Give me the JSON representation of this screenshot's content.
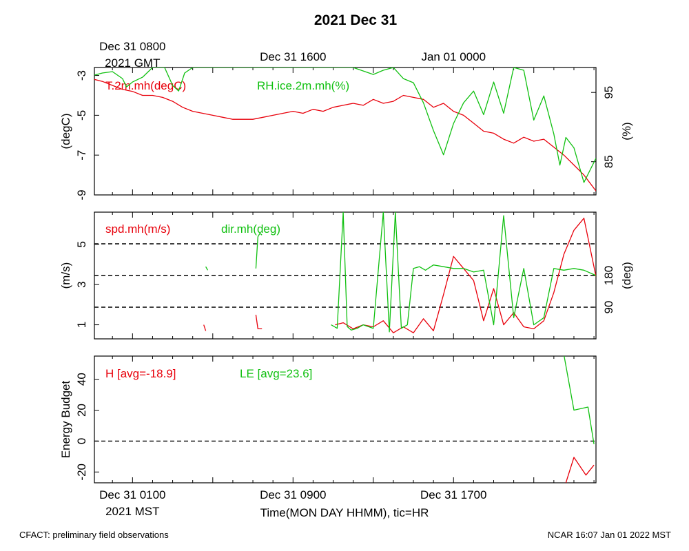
{
  "title": "2021 Dec 31",
  "footer_left": "CFACT: preliminary field observations",
  "footer_right": "NCAR 16:07 Jan 01 2022 MST",
  "colors": {
    "red": "#e8000b",
    "green": "#10c010",
    "black": "#000000"
  },
  "top_axis": {
    "ticks": [
      {
        "hour": 0,
        "lines": [
          "Dec 31 0800",
          "2021 GMT"
        ]
      },
      {
        "hour": 8,
        "lines": [
          "Dec 31 1600"
        ]
      },
      {
        "hour": 16,
        "lines": [
          "Jan 01 0000"
        ]
      }
    ]
  },
  "bottom_axis": {
    "xlabel": "Time(MON DAY HHMM), tic=HR",
    "ticks": [
      {
        "hour": 0,
        "lines": [
          "Dec 31 0100",
          "2021 MST"
        ]
      },
      {
        "hour": 8,
        "lines": [
          "Dec 31 0900"
        ]
      },
      {
        "hour": 16,
        "lines": [
          "Dec 31 1700"
        ]
      }
    ],
    "major_every_hours": 4,
    "xlim_hours": [
      -1.9,
      23.1
    ]
  },
  "chart_data": [
    {
      "type": "line",
      "panel": "temperature-rh",
      "ylabel_left": "(degC)",
      "ylabel_right": "(%)",
      "ylim_left": [
        -9.0,
        -2.6
      ],
      "ylim_right": [
        80.2,
        98.6
      ],
      "yticks_left": [
        "-3",
        "-5",
        "-7",
        "-9"
      ],
      "yticks_right": [
        "95",
        "85"
      ],
      "series": [
        {
          "name": "T.2m.mh(degC)",
          "color": "red",
          "axis": "left",
          "x": [
            -1.9,
            -1.5,
            -1.0,
            -0.5,
            0,
            0.5,
            1.0,
            1.5,
            2.0,
            2.5,
            3.0,
            3.5,
            4.0,
            4.5,
            5.0,
            5.5,
            6.0,
            6.5,
            7.0,
            7.5,
            8.0,
            8.5,
            9.0,
            9.5,
            10.0,
            10.5,
            11.0,
            11.5,
            12.0,
            12.5,
            13.0,
            13.5,
            14.0,
            14.5,
            15.0,
            15.5,
            16.0,
            16.5,
            17.0,
            17.5,
            18.0,
            18.5,
            19.0,
            19.5,
            20.0,
            20.5,
            21.0,
            21.5,
            22.0,
            22.5,
            23.1
          ],
          "y": [
            -3.2,
            -3.3,
            -3.5,
            -3.7,
            -3.8,
            -4.0,
            -4.0,
            -4.1,
            -4.3,
            -4.6,
            -4.8,
            -4.9,
            -5.0,
            -5.1,
            -5.2,
            -5.2,
            -5.2,
            -5.1,
            -5.0,
            -4.9,
            -4.8,
            -4.9,
            -4.7,
            -4.8,
            -4.6,
            -4.5,
            -4.4,
            -4.5,
            -4.2,
            -4.4,
            -4.3,
            -4.0,
            -4.1,
            -4.2,
            -4.6,
            -4.4,
            -4.8,
            -5.0,
            -5.4,
            -5.8,
            -5.9,
            -6.2,
            -6.4,
            -6.1,
            -6.3,
            -6.2,
            -6.6,
            -7.0,
            -7.5,
            -8.0,
            -8.8
          ]
        },
        {
          "name": "RH.ice.2m.mh(%)",
          "color": "green",
          "axis": "right",
          "x": [
            -1.9,
            -1.5,
            -1.0,
            -0.5,
            -0.3,
            0,
            0.5,
            1.0,
            1.3,
            1.6,
            2.0,
            2.3,
            2.6,
            3.0,
            3.5,
            4.0,
            5.0,
            6.0,
            7.0,
            8.0,
            9.0,
            10.0,
            11.0,
            12.0,
            12.5,
            13.0,
            13.5,
            14.0,
            14.5,
            15.0,
            15.5,
            16.0,
            16.5,
            17.0,
            17.5,
            18.0,
            18.5,
            19.0,
            19.5,
            20.0,
            20.5,
            21.0,
            21.3,
            21.6,
            22.0,
            22.5,
            23.1
          ],
          "y": [
            97.5,
            97.8,
            98.0,
            97.0,
            95.8,
            96.5,
            97.2,
            98.6,
            98.6,
            98.6,
            96.0,
            95.2,
            97.8,
            98.6,
            98.6,
            98.6,
            98.6,
            98.6,
            98.6,
            98.6,
            98.6,
            98.6,
            98.6,
            97.6,
            98.2,
            98.6,
            97.0,
            96.4,
            93.5,
            89.5,
            86.0,
            90.5,
            93.5,
            95.2,
            91.8,
            96.5,
            92.0,
            98.6,
            98.2,
            91.0,
            94.5,
            89.0,
            84.5,
            88.5,
            87.0,
            82.0,
            85.5
          ]
        }
      ]
    },
    {
      "type": "line",
      "panel": "wind",
      "ylabel_left": "(m/s)",
      "ylabel_right": "(deg)",
      "ylim_left": [
        0.3,
        6.6
      ],
      "ylim_right": [
        0,
        360
      ],
      "yticks_left": [
        "1",
        "3",
        "5"
      ],
      "yticks_right": [
        "90",
        "180"
      ],
      "reference_lines_deg": [
        90,
        180,
        270
      ],
      "series": [
        {
          "name": "spd.mh(m/s)",
          "color": "red",
          "axis": "left",
          "segments": [
            {
              "x": [
                3.55,
                3.65
              ],
              "y": [
                1.0,
                0.7
              ]
            },
            {
              "x": [
                6.15,
                6.25,
                6.45
              ],
              "y": [
                1.5,
                0.8,
                0.8
              ]
            },
            {
              "x": [
                10.1,
                10.5,
                11.0,
                11.5,
                12.0,
                12.5,
                13.0,
                13.5,
                14.0,
                14.5,
                15.0,
                15.5,
                16.0,
                16.5,
                17.0,
                17.5,
                18.0,
                18.5,
                19.0,
                19.5,
                20.0,
                20.5,
                21.0,
                21.5,
                22.0,
                22.5,
                23.1
              ],
              "y": [
                1.0,
                1.1,
                0.8,
                1.0,
                0.9,
                1.2,
                0.6,
                0.9,
                0.6,
                1.3,
                0.7,
                2.5,
                4.4,
                3.8,
                3.2,
                1.2,
                2.8,
                1.0,
                1.6,
                0.9,
                0.8,
                1.2,
                2.6,
                4.5,
                5.7,
                6.3,
                3.4
              ]
            }
          ]
        },
        {
          "name": "dir.mh(deg)",
          "color": "green",
          "axis": "right",
          "segments": [
            {
              "x": [
                3.65,
                3.75
              ],
              "y": [
                205,
                195
              ]
            },
            {
              "x": [
                6.15,
                6.25,
                6.35,
                6.45
              ],
              "y": [
                200,
                290,
                300,
                295
              ]
            },
            {
              "x": [
                9.9,
                10.2,
                10.5,
                10.7,
                10.9,
                11.2,
                11.5,
                12.0,
                12.5,
                12.8,
                13.1,
                13.4,
                13.7,
                14.0,
                14.3,
                14.6,
                15.0,
                15.5,
                16.0,
                16.5,
                17.0,
                17.5,
                18.0,
                18.5,
                19.0,
                19.5,
                20.0,
                20.5,
                21.0,
                21.5,
                22.0,
                22.5,
                23.1
              ],
              "y": [
                40,
                30,
                360,
                35,
                25,
                30,
                40,
                30,
                360,
                20,
                360,
                30,
                40,
                200,
                205,
                195,
                210,
                205,
                200,
                200,
                190,
                195,
                40,
                350,
                60,
                200,
                40,
                60,
                200,
                195,
                200,
                195,
                180
              ]
            }
          ]
        }
      ]
    },
    {
      "type": "line",
      "panel": "energy",
      "ylabel_left": "Energy Budget",
      "ylim_left": [
        -27,
        55
      ],
      "yticks_left": [
        "40",
        "20",
        "0",
        "-20"
      ],
      "reference_lines": [
        0
      ],
      "series": [
        {
          "name": "H [avg=-18.9]",
          "color": "red",
          "x": [
            21.6,
            22.0,
            22.6,
            23.0
          ],
          "y": [
            -27,
            -10.5,
            -22.0,
            -15.5
          ]
        },
        {
          "name": "LE [avg=23.6]",
          "color": "green",
          "x": [
            21.5,
            22.0,
            22.7,
            23.0
          ],
          "y": [
            56,
            20.0,
            22.0,
            -2.0
          ]
        }
      ]
    }
  ]
}
